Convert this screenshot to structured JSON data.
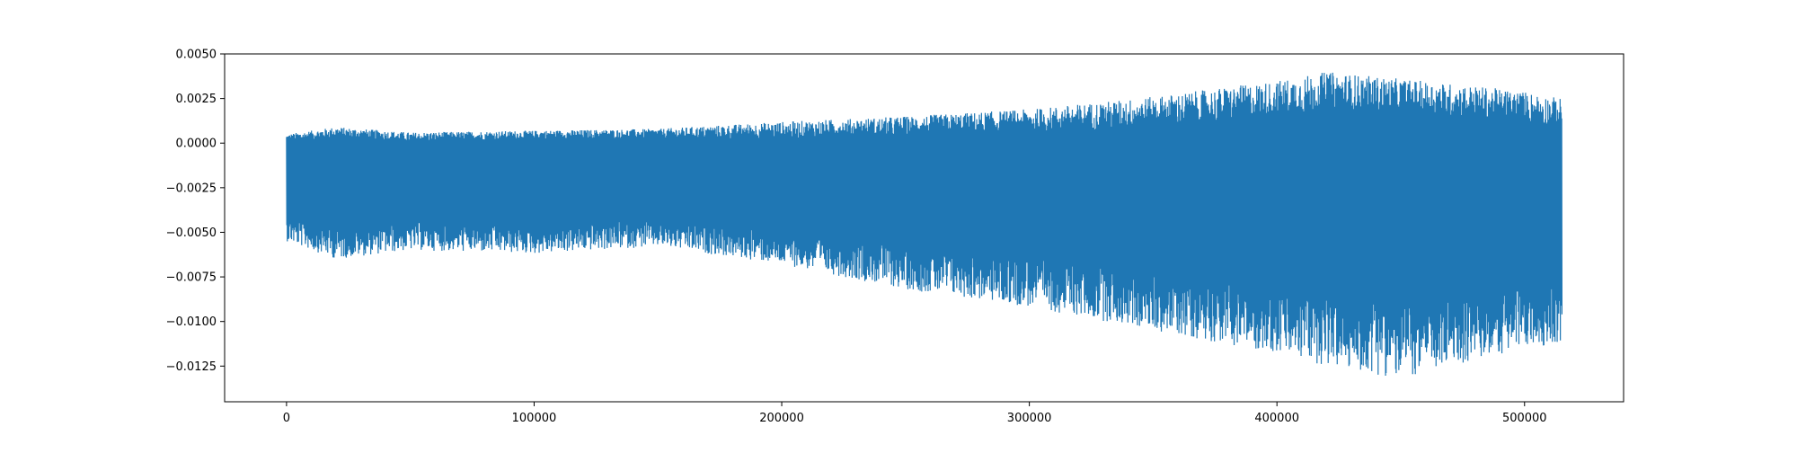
{
  "chart_data": {
    "type": "line",
    "title": "",
    "xlabel": "",
    "ylabel": "",
    "color": "#1f77b4",
    "xlim": [
      -25000,
      540000
    ],
    "ylim": [
      -0.0145,
      0.005
    ],
    "x_ticks": [
      0,
      100000,
      200000,
      300000,
      400000,
      500000
    ],
    "x_tick_labels": [
      "0",
      "100000",
      "200000",
      "300000",
      "400000",
      "500000"
    ],
    "y_ticks": [
      0.005,
      0.0025,
      0.0,
      -0.0025,
      -0.005,
      -0.0075,
      -0.01,
      -0.0125
    ],
    "y_tick_labels": [
      "0.0050",
      "0.0025",
      "0.0000",
      "−0.0025",
      "−0.0050",
      "−0.0075",
      "−0.0100",
      "−0.0125"
    ],
    "grid": false,
    "legend": "none",
    "series": [
      {
        "x_range": [
          0,
          515000
        ],
        "envelope": {
          "x": [
            0,
            20000,
            50000,
            100000,
            150000,
            200000,
            250000,
            300000,
            350000,
            400000,
            420000,
            450000,
            480000,
            500000,
            515000
          ],
          "upper": [
            0.0005,
            0.0009,
            0.0006,
            0.0007,
            0.0008,
            0.0012,
            0.0015,
            0.0019,
            0.0026,
            0.0035,
            0.004,
            0.0036,
            0.0032,
            0.0029,
            0.0025
          ],
          "lower": [
            -0.0055,
            -0.0065,
            -0.006,
            -0.0062,
            -0.0058,
            -0.0068,
            -0.0082,
            -0.0092,
            -0.0105,
            -0.0118,
            -0.0125,
            -0.0132,
            -0.0122,
            -0.0115,
            -0.0112
          ],
          "body_upper": [
            -0.0002,
            0.0,
            -0.0002,
            0.0,
            0.0,
            -0.0003,
            -0.0002,
            -0.0002,
            0.0,
            0.0003,
            0.0006,
            0.0006,
            0.0003,
            0.0,
            0.0
          ],
          "body_lower": [
            -0.0035,
            -0.0038,
            -0.0036,
            -0.0038,
            -0.0035,
            -0.004,
            -0.0045,
            -0.0048,
            -0.0055,
            -0.0062,
            -0.0065,
            -0.0068,
            -0.0065,
            -0.006,
            -0.006
          ]
        }
      }
    ]
  }
}
